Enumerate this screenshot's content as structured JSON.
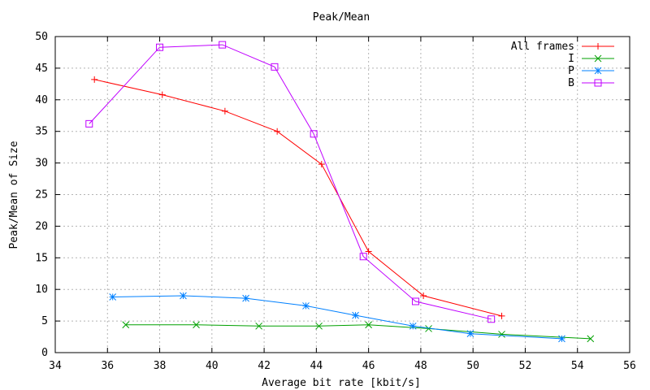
{
  "chart_data": {
    "type": "line",
    "title": "Peak/Mean",
    "xlabel": "Average bit rate [kbit/s]",
    "ylabel": "Peak/Mean of Size",
    "xlim": [
      34,
      56
    ],
    "ylim": [
      0,
      50
    ],
    "x_ticks": [
      34,
      36,
      38,
      40,
      42,
      44,
      46,
      48,
      50,
      52,
      54,
      56
    ],
    "y_ticks": [
      0,
      5,
      10,
      15,
      20,
      25,
      30,
      35,
      40,
      45,
      50
    ],
    "grid": true,
    "legend_position": "top-right",
    "series": [
      {
        "name": "All frames",
        "color": "#ff0000",
        "marker": "plus",
        "x": [
          35.5,
          38.1,
          40.5,
          42.5,
          44.2,
          46.0,
          48.1,
          51.1
        ],
        "y": [
          43.2,
          40.8,
          38.2,
          35.0,
          29.8,
          16.0,
          9.0,
          5.8
        ]
      },
      {
        "name": "I",
        "color": "#00a000",
        "marker": "cross",
        "x": [
          36.7,
          39.4,
          41.8,
          44.1,
          46.0,
          48.3,
          51.1,
          54.5
        ],
        "y": [
          4.4,
          4.4,
          4.2,
          4.2,
          4.4,
          3.8,
          2.9,
          2.2
        ]
      },
      {
        "name": "P",
        "color": "#0080ff",
        "marker": "star",
        "x": [
          36.2,
          38.9,
          41.3,
          43.6,
          45.5,
          47.7,
          49.9,
          53.4
        ],
        "y": [
          8.8,
          9.0,
          8.6,
          7.4,
          5.9,
          4.2,
          3.0,
          2.2
        ]
      },
      {
        "name": "B",
        "color": "#c000ff",
        "marker": "square",
        "x": [
          35.3,
          38.0,
          40.4,
          42.4,
          43.9,
          45.8,
          47.8,
          50.7
        ],
        "y": [
          36.2,
          48.3,
          48.7,
          45.2,
          34.6,
          15.2,
          8.1,
          5.3
        ]
      }
    ]
  }
}
